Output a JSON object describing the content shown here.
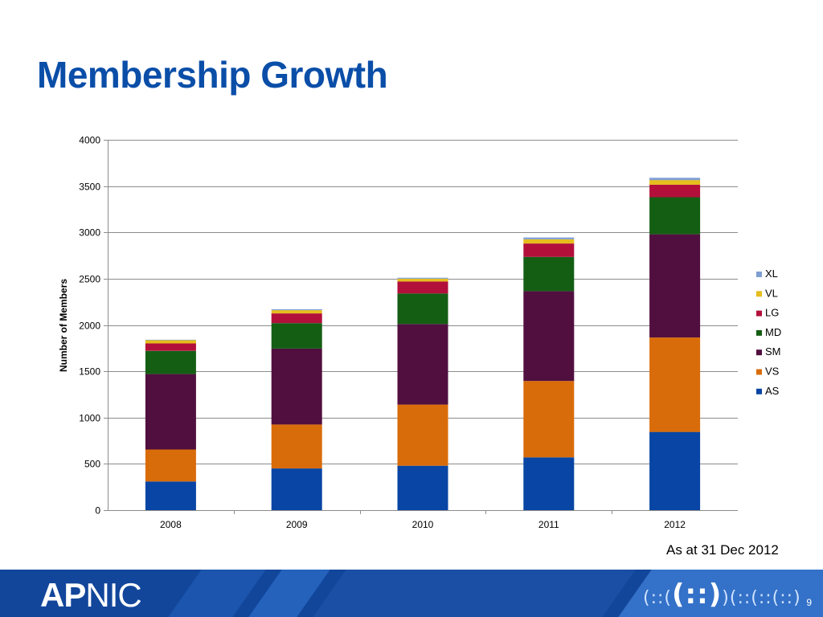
{
  "slide": {
    "title": "Membership Growth",
    "note": "As at 31 Dec 2012",
    "page_number": "9"
  },
  "footer": {
    "logo_ap": "AP",
    "logo_nic": "NIC",
    "brand_mark_left": "(::(",
    "brand_mark_center": "(::)",
    "brand_mark_right": ")(::(::(::)"
  },
  "chart_data": {
    "type": "bar",
    "stacked": true,
    "categories": [
      "2008",
      "2009",
      "2010",
      "2011",
      "2012"
    ],
    "ylabel": "Number of Members",
    "xlabel": "",
    "ylim": [
      0,
      4000
    ],
    "yticks": [
      0,
      500,
      1000,
      1500,
      2000,
      2500,
      3000,
      3500,
      4000
    ],
    "grid": true,
    "legend_position": "right",
    "series": [
      {
        "name": "AS",
        "color": "#0845a4",
        "values": [
          310,
          450,
          480,
          570,
          845
        ]
      },
      {
        "name": "VS",
        "color": "#d96c0a",
        "values": [
          345,
          475,
          660,
          825,
          1020
        ]
      },
      {
        "name": "SM",
        "color": "#510f3f",
        "values": [
          815,
          820,
          870,
          970,
          1115
        ]
      },
      {
        "name": "MD",
        "color": "#145e14",
        "values": [
          250,
          275,
          330,
          370,
          400
        ]
      },
      {
        "name": "LG",
        "color": "#b2103b",
        "values": [
          80,
          105,
          130,
          145,
          135
        ]
      },
      {
        "name": "VL",
        "color": "#e5bd1c",
        "values": [
          35,
          35,
          30,
          45,
          50
        ]
      },
      {
        "name": "XL",
        "color": "#7f9fd2",
        "values": [
          5,
          10,
          10,
          20,
          25
        ]
      }
    ]
  }
}
